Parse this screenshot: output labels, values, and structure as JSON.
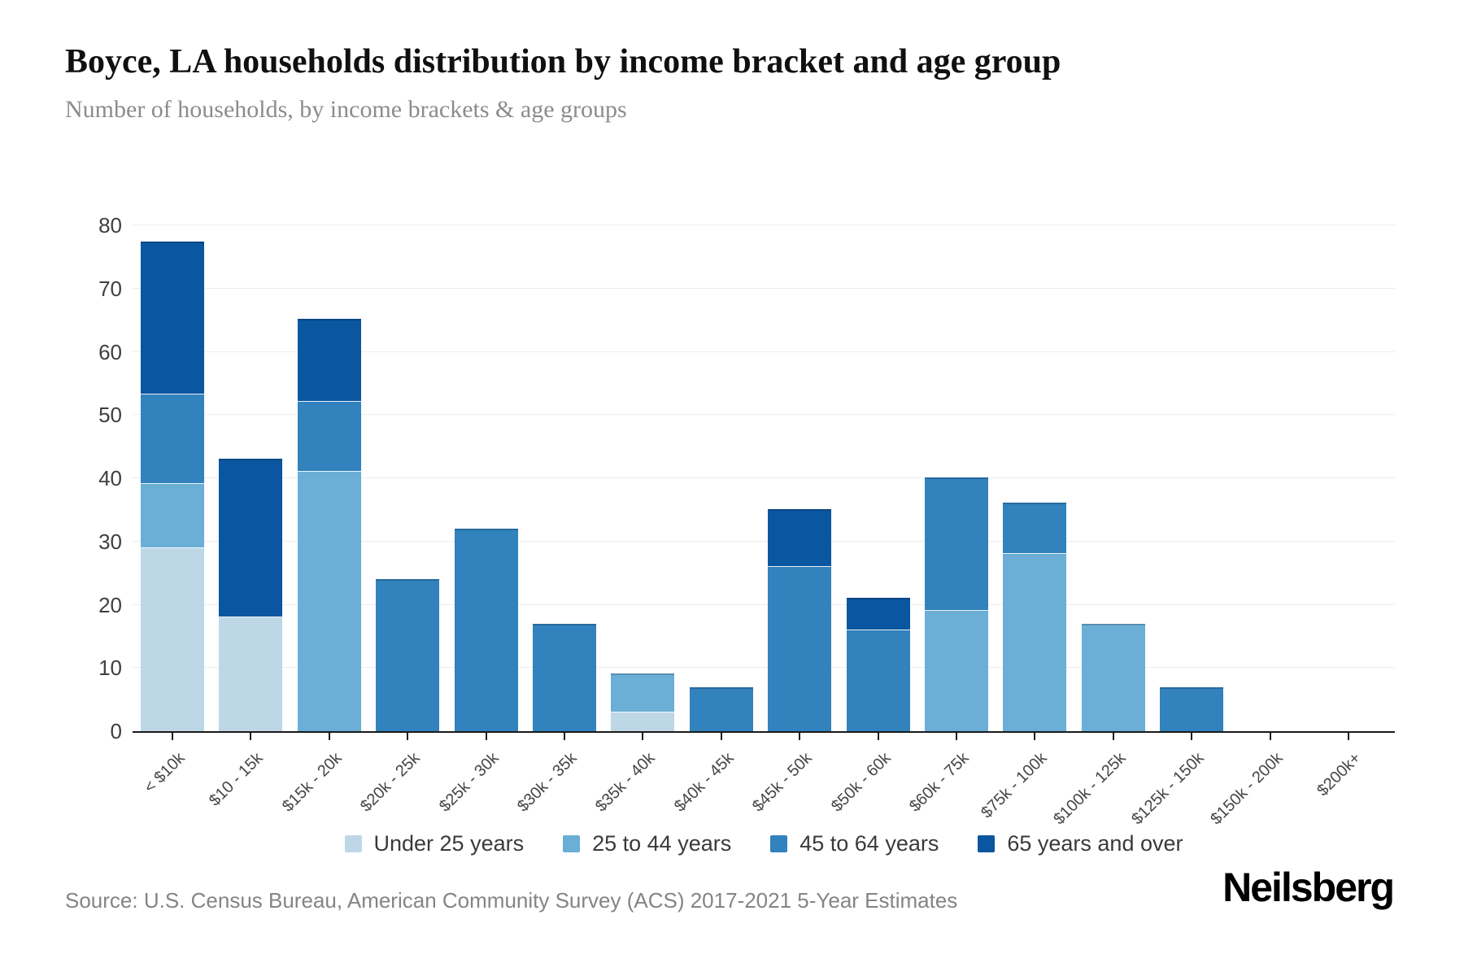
{
  "header": {
    "title": "Boyce, LA households distribution by income bracket and age group",
    "subtitle": "Number of households, by income brackets & age groups"
  },
  "chart_data": {
    "type": "bar",
    "stacked": true,
    "title": "Boyce, LA households distribution by income bracket and age group",
    "xlabel": "",
    "ylabel": "Number of households",
    "ylim": [
      0,
      80
    ],
    "yticks": [
      0,
      10,
      20,
      30,
      40,
      50,
      60,
      70,
      80
    ],
    "grid": true,
    "legend_position": "bottom",
    "categories": [
      "< $10k",
      "$10 - 15k",
      "$15k - 20k",
      "$20k - 25k",
      "$25k - 30k",
      "$30k - 35k",
      "$35k - 40k",
      "$40k - 45k",
      "$45k - 50k",
      "$50k - 60k",
      "$60k - 75k",
      "$75k - 100k",
      "$100k - 125k",
      "$125k - 150k",
      "$150k - 200k",
      "$200k+"
    ],
    "series": [
      {
        "name": "Under 25 years",
        "color": "#bdd7e7",
        "values": [
          29,
          18,
          0,
          0,
          0,
          0,
          3,
          0,
          0,
          0,
          0,
          0,
          0,
          0,
          0,
          0
        ]
      },
      {
        "name": "25 to 44 years",
        "color": "#6baed6",
        "values": [
          10,
          0,
          41,
          0,
          0,
          0,
          6,
          0,
          0,
          0,
          19,
          28,
          17,
          0,
          0,
          0
        ]
      },
      {
        "name": "45 to 64 years",
        "color": "#3182bd",
        "values": [
          14,
          0,
          11,
          24,
          32,
          17,
          0,
          7,
          26,
          16,
          21,
          8,
          0,
          7,
          0,
          0
        ]
      },
      {
        "name": "65 years and over",
        "color": "#0b56a0",
        "values": [
          24,
          25,
          13,
          0,
          0,
          0,
          0,
          0,
          9,
          5,
          0,
          0,
          0,
          0,
          0,
          0
        ]
      }
    ],
    "totals": [
      77,
      43,
      65,
      24,
      32,
      17,
      9,
      7,
      35,
      21,
      40,
      36,
      17,
      7,
      0,
      0
    ]
  },
  "footer": {
    "source": "Source: U.S. Census Bureau, American Community Survey (ACS) 2017-2021 5-Year Estimates",
    "brand": "Neilsberg"
  },
  "colors": {
    "gridline": "#ededed",
    "axis": "#1a1a1a",
    "tick_label": "#3f3f3f"
  }
}
